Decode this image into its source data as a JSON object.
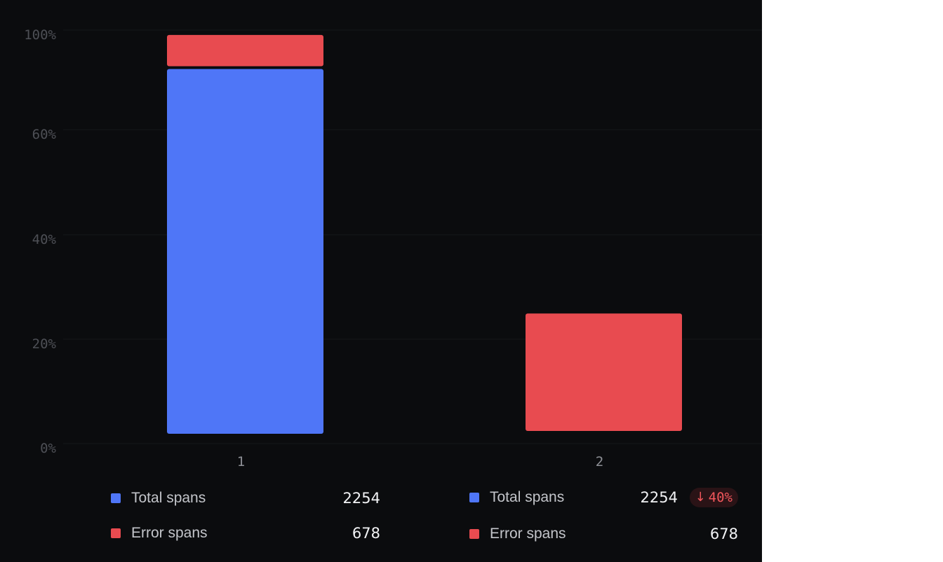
{
  "chart_data": {
    "type": "bar",
    "stacked": true,
    "categories": [
      "1",
      "2"
    ],
    "y_ticks": [
      "100%",
      "60%",
      "40%",
      "20%",
      "0%"
    ],
    "series": [
      {
        "name": "Total spans",
        "color": "#4f76f7",
        "values": [
          91,
          0
        ]
      },
      {
        "name": "Error spans",
        "color": "#e84b50",
        "values": [
          8.5,
          30
        ]
      }
    ],
    "ylim": [
      0,
      100
    ],
    "grid": true
  },
  "legend": [
    {
      "items": [
        {
          "name": "Total spans",
          "value": "2254",
          "color": "#4f76f7"
        },
        {
          "name": "Error spans",
          "value": "678",
          "color": "#e84b50"
        }
      ]
    },
    {
      "items": [
        {
          "name": "Total spans",
          "value": "2254",
          "color": "#4f76f7",
          "badge": {
            "icon": "arrow-down-icon",
            "text": "40%"
          }
        },
        {
          "name": "Error spans",
          "value": "678",
          "color": "#e84b50"
        }
      ]
    }
  ]
}
